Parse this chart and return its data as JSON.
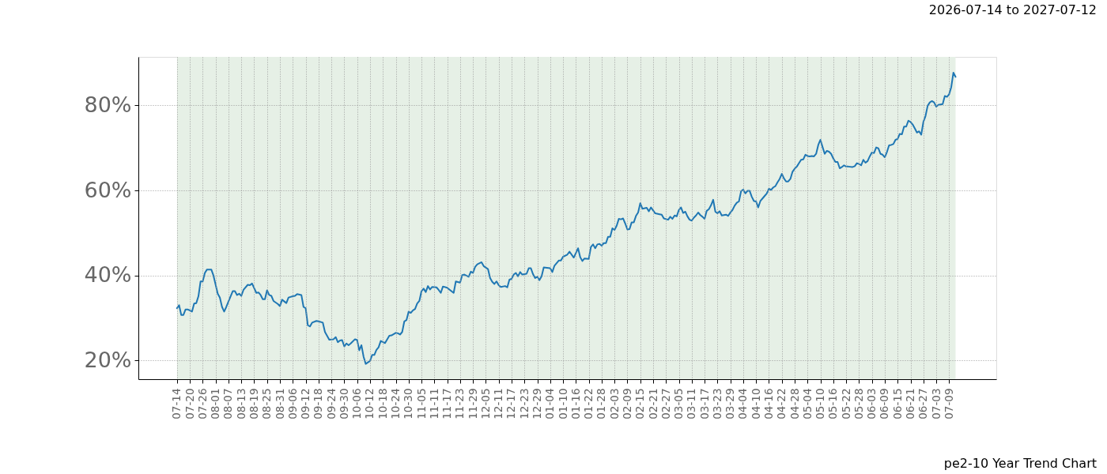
{
  "chart_data": {
    "type": "line",
    "title": "2026-07-14 to 2027-07-12",
    "annotations": [
      "pe2-10 Year Trend Chart"
    ],
    "x": [
      "2026-07-14",
      "2026-07-15",
      "2026-07-16",
      "2026-07-17",
      "2026-07-18",
      "2026-07-19",
      "2026-07-21",
      "2026-07-22",
      "2026-07-23",
      "2026-07-24",
      "2026-07-25",
      "2026-07-26",
      "2026-07-27",
      "2026-07-28",
      "2026-07-30",
      "2026-07-31",
      "2026-08-02",
      "2026-08-03",
      "2026-08-04",
      "2026-08-05",
      "2026-08-06",
      "2026-08-08",
      "2026-08-09",
      "2026-08-10",
      "2026-08-11",
      "2026-08-12",
      "2026-08-13",
      "2026-08-14",
      "2026-08-16",
      "2026-08-17",
      "2026-08-18",
      "2026-08-20",
      "2026-08-21",
      "2026-08-22",
      "2026-08-23",
      "2026-08-24",
      "2026-08-25",
      "2026-08-26",
      "2026-08-27",
      "2026-08-28",
      "2026-08-30",
      "2026-08-31",
      "2026-09-01",
      "2026-09-03",
      "2026-09-04",
      "2026-09-06",
      "2026-09-07",
      "2026-09-08",
      "2026-09-10",
      "2026-09-11",
      "2026-09-12",
      "2026-09-13",
      "2026-09-14",
      "2026-09-15",
      "2026-09-17",
      "2026-09-18",
      "2026-09-20",
      "2026-09-21",
      "2026-09-23",
      "2026-09-25",
      "2026-09-26",
      "2026-09-27",
      "2026-09-28",
      "2026-09-29",
      "2026-09-30",
      "2026-10-01",
      "2026-10-02",
      "2026-10-03",
      "2026-10-05",
      "2026-10-06",
      "2026-10-07",
      "2026-10-08",
      "2026-10-09",
      "2026-10-10",
      "2026-10-12",
      "2026-10-13",
      "2026-10-14",
      "2026-10-15",
      "2026-10-16",
      "2026-10-17",
      "2026-10-19",
      "2026-10-21",
      "2026-10-22",
      "2026-10-24",
      "2026-10-25",
      "2026-10-26",
      "2026-10-27",
      "2026-10-28",
      "2026-10-29",
      "2026-10-30",
      "2026-10-31",
      "2026-11-01",
      "2026-11-02",
      "2026-11-03",
      "2026-11-04",
      "2026-11-05",
      "2026-11-06",
      "2026-11-07",
      "2026-11-08",
      "2026-11-09",
      "2026-11-10",
      "2026-11-12",
      "2026-11-13",
      "2026-11-14",
      "2026-11-15",
      "2026-11-17",
      "2026-11-18",
      "2026-11-20",
      "2026-11-21",
      "2026-11-23",
      "2026-11-24",
      "2026-11-25",
      "2026-11-27",
      "2026-11-28",
      "2026-11-29",
      "2026-11-30",
      "2026-12-01",
      "2026-12-03",
      "2026-12-04",
      "2026-12-06",
      "2026-12-07",
      "2026-12-08",
      "2026-12-09",
      "2026-12-10",
      "2026-12-11",
      "2026-12-12",
      "2026-12-14",
      "2026-12-15",
      "2026-12-16",
      "2026-12-17",
      "2026-12-18",
      "2026-12-19",
      "2026-12-20",
      "2026-12-21",
      "2026-12-22",
      "2026-12-24",
      "2026-12-25",
      "2026-12-26",
      "2026-12-27",
      "2026-12-28",
      "2026-12-29",
      "2026-12-30",
      "2026-12-31",
      "2027-01-01",
      "2027-01-04",
      "2027-01-05",
      "2027-01-06",
      "2027-01-08",
      "2027-01-09",
      "2027-01-10",
      "2027-01-12",
      "2027-01-13",
      "2027-01-15",
      "2027-01-17",
      "2027-01-18",
      "2027-01-19",
      "2027-01-20",
      "2027-01-22",
      "2027-01-23",
      "2027-01-24",
      "2027-01-25",
      "2027-01-26",
      "2027-01-27",
      "2027-01-28",
      "2027-01-29",
      "2027-01-30",
      "2027-01-31",
      "2027-02-01",
      "2027-02-02",
      "2027-02-03",
      "2027-02-04",
      "2027-02-05",
      "2027-02-06",
      "2027-02-07",
      "2027-02-08",
      "2027-02-09",
      "2027-02-10",
      "2027-02-11",
      "2027-02-12",
      "2027-02-13",
      "2027-02-14",
      "2027-02-15",
      "2027-02-16",
      "2027-02-18",
      "2027-02-19",
      "2027-02-20",
      "2027-02-22",
      "2027-02-24",
      "2027-02-25",
      "2027-02-26",
      "2027-02-28",
      "2027-03-01",
      "2027-03-02",
      "2027-03-03",
      "2027-03-04",
      "2027-03-05",
      "2027-03-06",
      "2027-03-07",
      "2027-03-08",
      "2027-03-09",
      "2027-03-10",
      "2027-03-11",
      "2027-03-12",
      "2027-03-13",
      "2027-03-14",
      "2027-03-15",
      "2027-03-16",
      "2027-03-17",
      "2027-03-18",
      "2027-03-19",
      "2027-03-20",
      "2027-03-21",
      "2027-03-22",
      "2027-03-23",
      "2027-03-24",
      "2027-03-25",
      "2027-03-26",
      "2027-03-27",
      "2027-03-28",
      "2027-03-29",
      "2027-03-30",
      "2027-03-31",
      "2027-04-01",
      "2027-04-02",
      "2027-04-03",
      "2027-04-04",
      "2027-04-05",
      "2027-04-06",
      "2027-04-07",
      "2027-04-08",
      "2027-04-09",
      "2027-04-10",
      "2027-04-11",
      "2027-04-12",
      "2027-04-13",
      "2027-04-14",
      "2027-04-15",
      "2027-04-16",
      "2027-04-17",
      "2027-04-18",
      "2027-04-19",
      "2027-04-20",
      "2027-04-21",
      "2027-04-22",
      "2027-04-23",
      "2027-04-24",
      "2027-04-25",
      "2027-04-26",
      "2027-04-27",
      "2027-04-28",
      "2027-04-29",
      "2027-04-30",
      "2027-05-01",
      "2027-05-02",
      "2027-05-03",
      "2027-05-04",
      "2027-05-05",
      "2027-05-06",
      "2027-05-07",
      "2027-05-08",
      "2027-05-09",
      "2027-05-10",
      "2027-05-11",
      "2027-05-12",
      "2027-05-13",
      "2027-05-14",
      "2027-05-15",
      "2027-05-16",
      "2027-05-17",
      "2027-05-18",
      "2027-05-19",
      "2027-05-20",
      "2027-05-21",
      "2027-05-22",
      "2027-05-23",
      "2027-05-25",
      "2027-05-26",
      "2027-05-27",
      "2027-05-28",
      "2027-05-29",
      "2027-05-30",
      "2027-05-31",
      "2027-06-01",
      "2027-06-02",
      "2027-06-03",
      "2027-06-04",
      "2027-06-05",
      "2027-06-06",
      "2027-06-07",
      "2027-06-08",
      "2027-06-09",
      "2027-06-10",
      "2027-06-11",
      "2027-06-12",
      "2027-06-13",
      "2027-06-14",
      "2027-06-15",
      "2027-06-16",
      "2027-06-17",
      "2027-06-18",
      "2027-06-19",
      "2027-06-20",
      "2027-06-21",
      "2027-06-22",
      "2027-06-23",
      "2027-06-24",
      "2027-06-25",
      "2027-06-26",
      "2027-06-27",
      "2027-06-28",
      "2027-06-29",
      "2027-06-30",
      "2027-07-01",
      "2027-07-02",
      "2027-07-03",
      "2027-07-04",
      "2027-07-06",
      "2027-07-07",
      "2027-07-08",
      "2027-07-09",
      "2027-07-10",
      "2027-07-11",
      "2027-07-12"
    ],
    "series": [
      {
        "color": "#1f77b4",
        "values": [
          32.3,
          33.0,
          30.7,
          30.7,
          32.0,
          32.0,
          31.5,
          33.4,
          33.5,
          35.1,
          38.6,
          38.6,
          40.6,
          41.4,
          41.4,
          40.0,
          35.7,
          34.8,
          32.6,
          31.5,
          32.6,
          35.1,
          36.3,
          36.3,
          35.4,
          35.7,
          35.2,
          36.6,
          37.8,
          37.7,
          38.1,
          35.9,
          36.0,
          35.4,
          34.4,
          34.4,
          36.5,
          35.4,
          35.2,
          34.0,
          33.3,
          32.8,
          34.3,
          33.5,
          34.8,
          35.1,
          35.2,
          35.6,
          35.4,
          32.6,
          32.3,
          28.3,
          28.0,
          28.9,
          29.3,
          29.2,
          28.9,
          26.7,
          24.9,
          25.0,
          25.5,
          24.3,
          24.7,
          24.8,
          23.3,
          24.0,
          23.6,
          24.0,
          25.0,
          24.8,
          22.4,
          23.6,
          20.9,
          19.2,
          19.9,
          21.3,
          21.3,
          22.5,
          23.1,
          24.6,
          24.1,
          25.8,
          25.9,
          26.5,
          26.4,
          26.1,
          26.7,
          29.2,
          29.5,
          31.5,
          31.2,
          31.8,
          32.1,
          33.4,
          34.0,
          36.3,
          36.9,
          36.1,
          37.5,
          36.7,
          37.3,
          37.2,
          36.6,
          35.9,
          37.4,
          37.1,
          36.7,
          35.9,
          38.6,
          38.3,
          40.1,
          40.2,
          39.7,
          40.9,
          40.6,
          42.0,
          42.6,
          43.1,
          42.2,
          41.5,
          39.4,
          38.5,
          38.0,
          38.6,
          37.7,
          37.3,
          37.5,
          37.2,
          39.0,
          39.2,
          40.2,
          40.6,
          39.8,
          40.8,
          40.2,
          40.4,
          41.7,
          41.7,
          40.3,
          39.4,
          39.7,
          38.9,
          39.8,
          41.9,
          41.7,
          40.8,
          42.3,
          43.5,
          43.5,
          44.4,
          44.9,
          45.6,
          44.2,
          46.4,
          44.3,
          43.4,
          44.0,
          43.9,
          46.7,
          47.3,
          46.4,
          47.3,
          47.4,
          47.0,
          47.6,
          47.6,
          49.1,
          49.1,
          51.1,
          50.7,
          51.7,
          53.3,
          53.2,
          53.4,
          52.2,
          50.8,
          50.9,
          52.5,
          52.5,
          54.0,
          54.8,
          57.0,
          55.7,
          55.9,
          55.1,
          56.0,
          54.6,
          54.4,
          54.3,
          53.4,
          53.1,
          53.8,
          53.3,
          54.1,
          53.9,
          55.4,
          56.0,
          54.7,
          55.0,
          53.9,
          53.1,
          52.9,
          53.6,
          54.1,
          54.8,
          54.2,
          53.8,
          53.3,
          55.2,
          55.6,
          56.5,
          57.8,
          55.0,
          54.6,
          55.1,
          54.1,
          54.2,
          54.3,
          54.0,
          54.8,
          55.4,
          56.4,
          57.1,
          57.4,
          59.8,
          60.2,
          59.3,
          59.9,
          59.9,
          58.5,
          57.5,
          57.4,
          56.0,
          57.5,
          58.1,
          58.7,
          59.3,
          60.4,
          60.1,
          60.7,
          61.0,
          61.9,
          62.7,
          63.9,
          62.8,
          62.1,
          62.1,
          62.7,
          64.4,
          65.1,
          65.6,
          66.4,
          67.2,
          67.3,
          68.4,
          68.1,
          68.0,
          68.1,
          68.0,
          68.6,
          70.7,
          71.9,
          70.2,
          68.6,
          69.3,
          69.1,
          68.6,
          67.5,
          66.7,
          66.7,
          65.2,
          65.5,
          65.9,
          65.6,
          65.6,
          65.5,
          65.7,
          66.4,
          66.2,
          65.9,
          67.2,
          66.5,
          66.9,
          68.0,
          68.9,
          68.8,
          70.1,
          69.9,
          68.6,
          68.4,
          67.8,
          69.0,
          70.6,
          70.7,
          70.9,
          71.9,
          72.1,
          73.3,
          73.2,
          75.0,
          75.0,
          76.4,
          76.1,
          75.5,
          74.6,
          73.6,
          73.9,
          73.1,
          76.1,
          77.5,
          79.9,
          80.7,
          81.0,
          80.7,
          79.7,
          80.1,
          80.3,
          82.2,
          82.0,
          82.6,
          84.3,
          87.7,
          86.7
        ]
      }
    ],
    "xlim": [
      "2026-06-26",
      "2027-07-31"
    ],
    "xticks": [
      {
        "value": "2026-07-14",
        "label": "07-14"
      },
      {
        "value": "2026-07-20",
        "label": "07-20"
      },
      {
        "value": "2026-07-26",
        "label": "07-26"
      },
      {
        "value": "2026-08-01",
        "label": "08-01"
      },
      {
        "value": "2026-08-07",
        "label": "08-07"
      },
      {
        "value": "2026-08-13",
        "label": "08-13"
      },
      {
        "value": "2026-08-19",
        "label": "08-19"
      },
      {
        "value": "2026-08-25",
        "label": "08-25"
      },
      {
        "value": "2026-08-31",
        "label": "08-31"
      },
      {
        "value": "2026-09-06",
        "label": "09-06"
      },
      {
        "value": "2026-09-12",
        "label": "09-12"
      },
      {
        "value": "2026-09-18",
        "label": "09-18"
      },
      {
        "value": "2026-09-24",
        "label": "09-24"
      },
      {
        "value": "2026-09-30",
        "label": "09-30"
      },
      {
        "value": "2026-10-06",
        "label": "10-06"
      },
      {
        "value": "2026-10-12",
        "label": "10-12"
      },
      {
        "value": "2026-10-18",
        "label": "10-18"
      },
      {
        "value": "2026-10-24",
        "label": "10-24"
      },
      {
        "value": "2026-10-30",
        "label": "10-30"
      },
      {
        "value": "2026-11-05",
        "label": "11-05"
      },
      {
        "value": "2026-11-11",
        "label": "11-11"
      },
      {
        "value": "2026-11-17",
        "label": "11-17"
      },
      {
        "value": "2026-11-23",
        "label": "11-23"
      },
      {
        "value": "2026-11-29",
        "label": "11-29"
      },
      {
        "value": "2026-12-05",
        "label": "12-05"
      },
      {
        "value": "2026-12-11",
        "label": "12-11"
      },
      {
        "value": "2026-12-17",
        "label": "12-17"
      },
      {
        "value": "2026-12-23",
        "label": "12-23"
      },
      {
        "value": "2026-12-29",
        "label": "12-29"
      },
      {
        "value": "2027-01-04",
        "label": "01-04"
      },
      {
        "value": "2027-01-10",
        "label": "01-10"
      },
      {
        "value": "2027-01-16",
        "label": "01-16"
      },
      {
        "value": "2027-01-22",
        "label": "01-22"
      },
      {
        "value": "2027-01-28",
        "label": "01-28"
      },
      {
        "value": "2027-02-03",
        "label": "02-03"
      },
      {
        "value": "2027-02-09",
        "label": "02-09"
      },
      {
        "value": "2027-02-15",
        "label": "02-15"
      },
      {
        "value": "2027-02-21",
        "label": "02-21"
      },
      {
        "value": "2027-02-27",
        "label": "02-27"
      },
      {
        "value": "2027-03-05",
        "label": "03-05"
      },
      {
        "value": "2027-03-11",
        "label": "03-11"
      },
      {
        "value": "2027-03-17",
        "label": "03-17"
      },
      {
        "value": "2027-03-23",
        "label": "03-23"
      },
      {
        "value": "2027-03-29",
        "label": "03-29"
      },
      {
        "value": "2027-04-04",
        "label": "04-04"
      },
      {
        "value": "2027-04-10",
        "label": "04-10"
      },
      {
        "value": "2027-04-16",
        "label": "04-16"
      },
      {
        "value": "2027-04-22",
        "label": "04-22"
      },
      {
        "value": "2027-04-28",
        "label": "04-28"
      },
      {
        "value": "2027-05-04",
        "label": "05-04"
      },
      {
        "value": "2027-05-10",
        "label": "05-10"
      },
      {
        "value": "2027-05-16",
        "label": "05-16"
      },
      {
        "value": "2027-05-22",
        "label": "05-22"
      },
      {
        "value": "2027-05-28",
        "label": "05-28"
      },
      {
        "value": "2027-06-03",
        "label": "06-03"
      },
      {
        "value": "2027-06-09",
        "label": "06-09"
      },
      {
        "value": "2027-06-15",
        "label": "06-15"
      },
      {
        "value": "2027-06-21",
        "label": "06-21"
      },
      {
        "value": "2027-06-27",
        "label": "06-27"
      },
      {
        "value": "2027-07-03",
        "label": "07-03"
      },
      {
        "value": "2027-07-09",
        "label": "07-09"
      }
    ],
    "ylim": [
      15.6,
      91.4
    ],
    "yticks": [
      {
        "value": 20,
        "label": "20%"
      },
      {
        "value": 40,
        "label": "40%"
      },
      {
        "value": 60,
        "label": "60%"
      },
      {
        "value": 80,
        "label": "80%"
      }
    ],
    "grid": true,
    "line_style": "solid",
    "bands": [
      {
        "axis": "x",
        "from": "2026-07-14",
        "to": "2027-07-12",
        "color": "#e6f0e6"
      }
    ]
  }
}
